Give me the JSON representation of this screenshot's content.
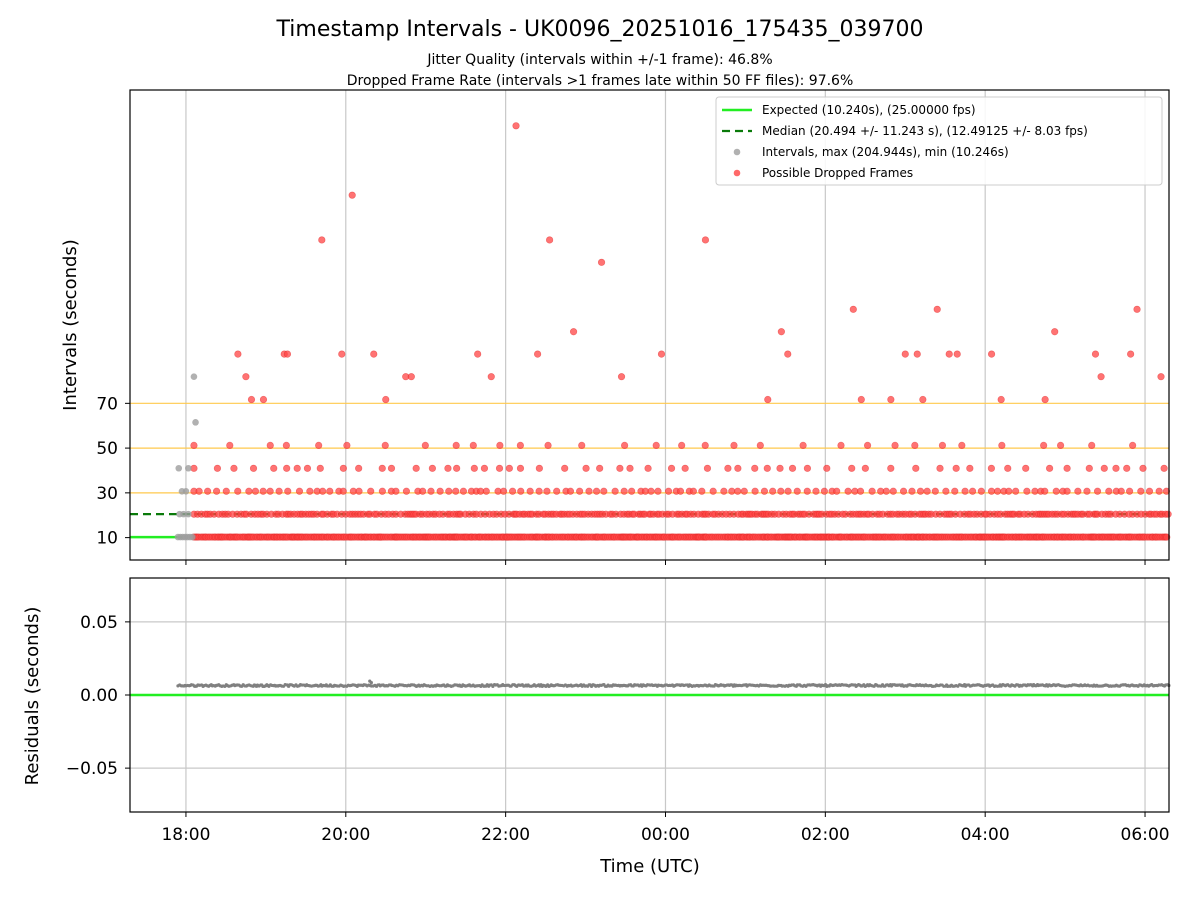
{
  "chart_data": [
    {
      "type": "scatter",
      "title": "Timestamp Intervals - UK0096_20251016_175435_039700",
      "subtitles": [
        "Jitter Quality (intervals within +/-1 frame): 46.8%",
        "Dropped Frame Rate (intervals >1 frames late within 50 FF files): 97.6%"
      ],
      "xlabel": "",
      "ylabel": "Intervals (seconds)",
      "xlim_hours": [
        17.3,
        30.3
      ],
      "ylim": [
        0,
        210
      ],
      "yticks": [
        10,
        30,
        50,
        70
      ],
      "ytick_labels": [
        "10",
        "30",
        "50",
        "70"
      ],
      "reference_lines": [
        10.24,
        20.48,
        30.72,
        40.96,
        51.2,
        61.44,
        71.68
      ],
      "highlighted_levels": [
        30,
        50,
        70
      ],
      "expected_interval": 10.24,
      "median_interval": 20.494,
      "legend_position": "top-right",
      "legend": [
        {
          "label": "Expected (10.240s), (25.00000 fps)",
          "style": "solid-line",
          "color": "#22ee22"
        },
        {
          "label": "Median (20.494 +/- 11.243 s), (12.49125 +/- 8.03 fps)",
          "style": "dashed-line",
          "color": "#0a7a0a"
        },
        {
          "label": "Intervals, max (204.944s), min (10.246s)",
          "style": "marker",
          "color": "#9e9e9e"
        },
        {
          "label": "Possible Dropped Frames",
          "style": "marker",
          "color": "#ff4444"
        }
      ],
      "series": [
        {
          "name": "Intervals",
          "color": "#9e9e9e",
          "points": [
            {
              "x": 17.9,
              "y": 10.25
            },
            {
              "x": 17.93,
              "y": 10.25
            },
            {
              "x": 17.96,
              "y": 10.25
            },
            {
              "x": 17.99,
              "y": 10.25
            },
            {
              "x": 18.02,
              "y": 10.25
            },
            {
              "x": 18.05,
              "y": 10.25
            },
            {
              "x": 18.08,
              "y": 10.25
            },
            {
              "x": 17.92,
              "y": 20.5
            },
            {
              "x": 17.97,
              "y": 20.5
            },
            {
              "x": 18.03,
              "y": 20.5
            },
            {
              "x": 17.95,
              "y": 30.7
            },
            {
              "x": 18.0,
              "y": 30.7
            },
            {
              "x": 17.91,
              "y": 41.0
            },
            {
              "x": 18.03,
              "y": 41.0
            },
            {
              "x": 18.12,
              "y": 61.5
            },
            {
              "x": 18.1,
              "y": 81.9
            }
          ]
        },
        {
          "name": "Possible Dropped Frames",
          "color": "#ff4444",
          "levels": [
            {
              "y": 10.24,
              "spacing_min": 1.2,
              "from_hours": 18.1,
              "to_hours": 30.3
            },
            {
              "y": 20.48,
              "spacing_min": 2.4,
              "from_hours": 18.1,
              "to_hours": 30.3
            },
            {
              "y": 30.72,
              "spacing_min": 6.0,
              "from_hours": 18.1,
              "to_hours": 30.3
            },
            {
              "y": 40.96,
              "spacing_min": 13.0,
              "from_hours": 18.1,
              "to_hours": 30.3
            },
            {
              "y": 51.2,
              "spacing_min": 22.0,
              "from_hours": 18.1,
              "to_hours": 30.3
            }
          ],
          "points": [
            {
              "x": 19.7,
              "y": 143
            },
            {
              "x": 20.08,
              "y": 163
            },
            {
              "x": 22.13,
              "y": 194
            },
            {
              "x": 22.55,
              "y": 143
            },
            {
              "x": 23.2,
              "y": 133
            },
            {
              "x": 24.5,
              "y": 143
            },
            {
              "x": 29.9,
              "y": 112
            },
            {
              "x": 27.4,
              "y": 112
            },
            {
              "x": 26.35,
              "y": 112
            },
            {
              "x": 18.65,
              "y": 92
            },
            {
              "x": 18.75,
              "y": 81.9
            },
            {
              "x": 18.82,
              "y": 71.7
            },
            {
              "x": 19.23,
              "y": 92
            },
            {
              "x": 19.27,
              "y": 92
            },
            {
              "x": 19.95,
              "y": 92
            },
            {
              "x": 20.35,
              "y": 92
            },
            {
              "x": 21.65,
              "y": 92
            },
            {
              "x": 22.4,
              "y": 92
            },
            {
              "x": 22.85,
              "y": 102
            },
            {
              "x": 23.95,
              "y": 92
            },
            {
              "x": 25.45,
              "y": 102
            },
            {
              "x": 25.53,
              "y": 92
            },
            {
              "x": 27.0,
              "y": 92
            },
            {
              "x": 27.15,
              "y": 92
            },
            {
              "x": 27.55,
              "y": 92
            },
            {
              "x": 27.65,
              "y": 92
            },
            {
              "x": 28.08,
              "y": 92
            },
            {
              "x": 29.38,
              "y": 92
            },
            {
              "x": 29.82,
              "y": 92
            },
            {
              "x": 20.75,
              "y": 81.9
            },
            {
              "x": 20.82,
              "y": 81.9
            },
            {
              "x": 21.82,
              "y": 81.9
            },
            {
              "x": 23.45,
              "y": 81.9
            },
            {
              "x": 29.45,
              "y": 81.9
            },
            {
              "x": 30.2,
              "y": 81.9
            },
            {
              "x": 28.87,
              "y": 102
            },
            {
              "x": 18.97,
              "y": 71.7
            },
            {
              "x": 20.5,
              "y": 71.7
            },
            {
              "x": 25.28,
              "y": 71.7
            },
            {
              "x": 26.45,
              "y": 71.7
            },
            {
              "x": 26.82,
              "y": 71.7
            },
            {
              "x": 27.22,
              "y": 71.7
            },
            {
              "x": 28.2,
              "y": 71.7
            },
            {
              "x": 28.75,
              "y": 71.7
            }
          ]
        }
      ]
    },
    {
      "type": "scatter",
      "ylabel": "Residuals (seconds)",
      "xlabel": "Time (UTC)",
      "xlim_hours": [
        17.3,
        30.3
      ],
      "ylim": [
        -0.08,
        0.08
      ],
      "yticks": [
        -0.05,
        0,
        0.05
      ],
      "ytick_labels": [
        "−0.05",
        "0.00",
        "0.05"
      ],
      "xticks_hours": [
        18,
        20,
        22,
        24,
        26,
        28,
        30
      ],
      "xtick_labels": [
        "18:00",
        "20:00",
        "22:00",
        "00:00",
        "02:00",
        "04:00",
        "06:00"
      ],
      "reference_line": 0,
      "series": [
        {
          "name": "Residuals",
          "color": "#808080",
          "x_range_hours": [
            17.9,
            30.3
          ],
          "baseline": 0.0065,
          "points": [
            {
              "x": 20.3,
              "y": 0.0095
            },
            {
              "x": 20.32,
              "y": 0.0085
            }
          ]
        }
      ]
    }
  ]
}
